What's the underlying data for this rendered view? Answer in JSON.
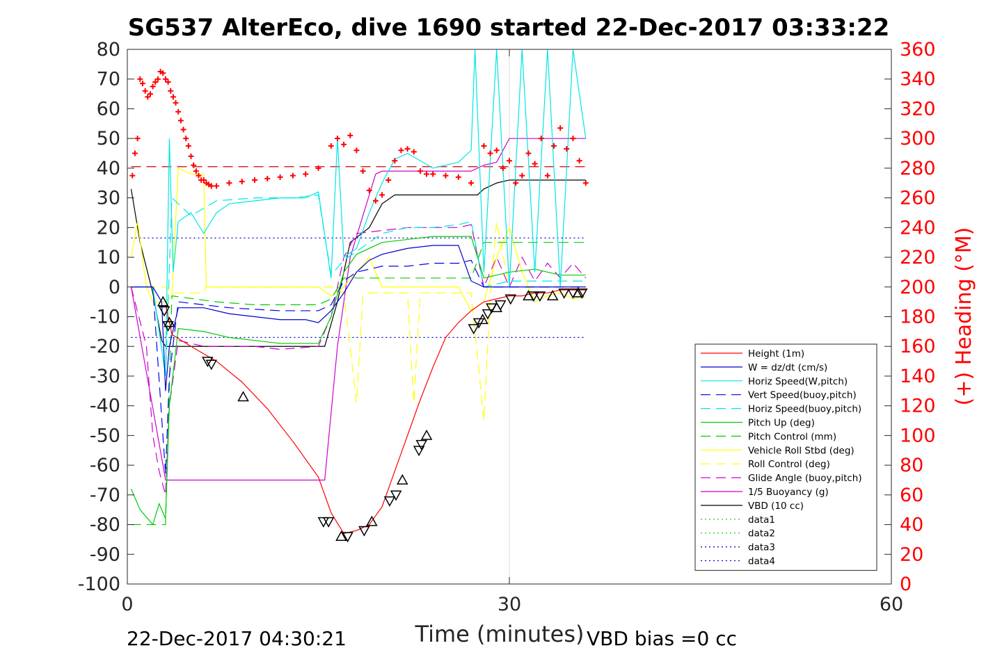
{
  "chart_data": {
    "type": "line",
    "title": "SG537 AlterEco, dive 1690 started 22-Dec-2017 03:33:22",
    "xlabel": "Time (minutes)",
    "ylabel": "",
    "y2label": "(+) Heading (°M)",
    "xlim": [
      0,
      60
    ],
    "ylim": [
      -100,
      80
    ],
    "y2lim": [
      0,
      360
    ],
    "xticks": [
      "0",
      "30",
      "60"
    ],
    "xtick_values": [
      0,
      30,
      60
    ],
    "yticks": [
      "80",
      "70",
      "60",
      "50",
      "40",
      "30",
      "20",
      "10",
      "0",
      "-10",
      "-20",
      "-30",
      "-40",
      "-50",
      "-60",
      "-70",
      "-80",
      "-90",
      "-100"
    ],
    "ytick_values": [
      80,
      70,
      60,
      50,
      40,
      30,
      20,
      10,
      0,
      -10,
      -20,
      -30,
      -40,
      -50,
      -60,
      -70,
      -80,
      -90,
      -100
    ],
    "y2ticks": [
      "360",
      "340",
      "320",
      "300",
      "280",
      "260",
      "240",
      "220",
      "200",
      "180",
      "160",
      "140",
      "120",
      "100",
      "80",
      "60",
      "40",
      "20",
      "0"
    ],
    "y2tick_values": [
      360,
      340,
      320,
      300,
      280,
      260,
      240,
      220,
      200,
      180,
      160,
      140,
      120,
      100,
      80,
      60,
      40,
      20,
      0
    ],
    "grid": "x at 30",
    "legend_position": "bottom-right",
    "series": [
      {
        "name": "Height (1m)",
        "color": "#ff0000",
        "style": "solid",
        "x": [
          3.0,
          3.5,
          5,
          7,
          9,
          11,
          13,
          15,
          16,
          17,
          18,
          19,
          20,
          21,
          22,
          23,
          24,
          25,
          26,
          27,
          28,
          29,
          30,
          31,
          32,
          33,
          34,
          35,
          36
        ],
        "y": [
          -6,
          -16,
          -20,
          -25,
          -32,
          -41,
          -52,
          -64,
          -76,
          -83,
          -82,
          -80,
          -74,
          -62,
          -50,
          -38,
          -27,
          -17,
          -12,
          -8,
          -5,
          -4,
          -3,
          -3,
          -2,
          -2,
          -1,
          -1,
          -1
        ]
      },
      {
        "name": "W = dz/dt (cm/s)",
        "color": "#0000cc",
        "style": "solid",
        "x": [
          0.3,
          1,
          2,
          2.7,
          3.0,
          3.3,
          4,
          6,
          8,
          10,
          12,
          14,
          15,
          16,
          17,
          18,
          19,
          20,
          21,
          22,
          24,
          26,
          27,
          28,
          29,
          30,
          31,
          33,
          36
        ],
        "y": [
          0,
          0,
          0,
          -5,
          -35,
          -20,
          -7,
          -7,
          -9,
          -10,
          -11,
          -11,
          -12,
          -8,
          -2,
          5,
          9,
          11,
          12,
          13,
          14,
          14,
          2,
          0,
          0,
          0,
          0,
          0,
          0
        ]
      },
      {
        "name": "Horiz Speed(W,pitch)",
        "color": "#00e5e5",
        "style": "solid",
        "x": [
          0.3,
          1,
          2,
          3.0,
          3.3,
          3.6,
          4,
          5,
          6,
          7,
          8,
          10,
          12,
          14,
          15,
          16,
          16.5,
          17,
          18,
          19,
          20,
          21,
          22,
          24,
          26,
          27,
          27.3,
          28,
          29,
          30,
          31,
          32,
          33,
          34,
          35,
          36
        ],
        "y": [
          0,
          0,
          0,
          -30,
          50,
          5,
          22,
          25,
          18,
          25,
          28,
          29,
          30,
          30,
          32,
          3,
          50,
          10,
          13,
          25,
          35,
          43,
          45,
          40,
          42,
          46,
          80,
          5,
          80,
          0,
          80,
          5,
          80,
          0,
          80,
          50
        ]
      },
      {
        "name": "Vert Speed(buoy,pitch)",
        "color": "#0000ee",
        "style": "dashed",
        "x": [
          0.3,
          2,
          3.0,
          3.3,
          4,
          8,
          12,
          15,
          16,
          17,
          18,
          20,
          22,
          24,
          26,
          27,
          28,
          32,
          36
        ],
        "y": [
          0,
          0,
          -63,
          -30,
          -5,
          -7,
          -8,
          -8,
          -6,
          2,
          5,
          7,
          7,
          8,
          8,
          9,
          0,
          0,
          0
        ]
      },
      {
        "name": "Horiz Speed(buoy,pitch)",
        "color": "#00e5e5",
        "style": "dashed",
        "x": [
          0.3,
          2,
          3.0,
          3.5,
          5,
          7,
          10,
          13,
          15,
          16,
          17,
          18,
          20,
          22,
          24,
          26,
          27,
          28,
          30,
          32,
          34,
          36
        ],
        "y": [
          0,
          0,
          -30,
          30,
          24,
          29,
          30,
          30,
          31,
          4,
          9,
          12,
          18,
          20,
          20,
          21,
          22,
          0,
          2,
          2,
          2,
          2
        ]
      },
      {
        "name": "Pitch Up (deg)",
        "color": "#00cc00",
        "style": "solid",
        "x": [
          0.3,
          1,
          2,
          2.5,
          3.0,
          3.3,
          4,
          6,
          8,
          10,
          12,
          14,
          15,
          16,
          17,
          18,
          20,
          22,
          24,
          26,
          27,
          28,
          30,
          32,
          34,
          36
        ],
        "y": [
          -68,
          -75,
          -80,
          -73,
          -78,
          -40,
          -14,
          -15,
          -17,
          -18,
          -19,
          -19,
          -19,
          -10,
          5,
          11,
          15,
          16,
          17,
          17,
          17,
          3,
          5,
          6,
          4,
          4
        ]
      },
      {
        "name": "Pitch Control (mm)",
        "color": "#00cc00",
        "style": "dashed",
        "x": [
          0.3,
          2.5,
          3.0,
          3.5,
          7,
          10,
          14,
          15,
          16,
          17,
          18,
          20,
          24,
          27,
          28,
          36
        ],
        "y": [
          -80,
          -80,
          -80,
          -3,
          -5,
          -6,
          -6,
          -6,
          -4,
          3,
          3,
          3,
          3,
          3,
          15,
          15
        ]
      },
      {
        "name": "Vehicle Roll Stbd (deg)",
        "color": "#ffff00",
        "style": "solid",
        "x": [
          0.3,
          0.8,
          1.5,
          2,
          3.0,
          3.5,
          4,
          5,
          6,
          6.2,
          8,
          12,
          15,
          16,
          17,
          18,
          19,
          20,
          22,
          24,
          26,
          27,
          28,
          29,
          30,
          31,
          32,
          33,
          34,
          35,
          36
        ],
        "y": [
          10,
          22,
          0,
          -5,
          -5,
          -3,
          40,
          38,
          38,
          0,
          0,
          0,
          0,
          -3,
          0,
          5,
          10,
          0,
          0,
          0,
          0,
          -8,
          -5,
          10,
          20,
          5,
          -5,
          -3,
          -2,
          -4,
          -3
        ]
      },
      {
        "name": "Roll Control (deg)",
        "color": "#ffff00",
        "style": "dashed",
        "x": [
          0.3,
          2.5,
          3.0,
          3.5,
          6,
          6.2,
          16,
          17,
          18,
          18.5,
          19,
          20,
          22,
          22.5,
          23,
          27,
          28,
          28.5,
          29,
          30,
          32,
          34,
          36
        ],
        "y": [
          0,
          0,
          0,
          -2,
          -2,
          0,
          0,
          -2,
          -39,
          -3,
          -2,
          -2,
          -2,
          -39,
          -2,
          -2,
          -45,
          -3,
          22,
          0,
          0,
          0,
          0
        ]
      },
      {
        "name": "Glide Angle (buoy,pitch)",
        "color": "#cc00cc",
        "style": "dashed",
        "x": [
          0.3,
          1.5,
          2,
          2.5,
          3.0,
          3.3,
          4,
          6,
          8,
          10,
          12,
          15,
          16,
          17,
          18,
          20,
          22,
          24,
          26,
          27,
          28,
          29,
          30,
          31,
          32,
          33,
          34,
          35,
          36
        ],
        "y": [
          0,
          -20,
          -50,
          -62,
          -70,
          -40,
          -18,
          -20,
          -20,
          -20,
          -21,
          -20,
          -10,
          10,
          18,
          19,
          20,
          20,
          20,
          21,
          0,
          10,
          0,
          10,
          2,
          8,
          3,
          8,
          3
        ]
      },
      {
        "name": "1/5 Buoyancy (g)",
        "color": "#cc00cc",
        "style": "solid",
        "x": [
          0.3,
          2.8,
          3.0,
          15.5,
          16.5,
          17.5,
          19.5,
          20,
          21,
          27,
          28,
          29,
          30,
          36
        ],
        "y": [
          0,
          -60,
          -65,
          -65,
          -20,
          10,
          38,
          39,
          39,
          39,
          41,
          42,
          50,
          50
        ]
      },
      {
        "name": "VBD (10 cc)",
        "color": "#000000",
        "style": "solid",
        "x": [
          0.3,
          1,
          2,
          2.7,
          3.0,
          15.5,
          16.5,
          17.5,
          19,
          20,
          21,
          25,
          27.5,
          28,
          29,
          30,
          36
        ],
        "y": [
          33,
          15,
          -2,
          -18,
          -20,
          -20,
          -5,
          15,
          20,
          28,
          31,
          31,
          31,
          33,
          35,
          36,
          36
        ]
      },
      {
        "name": "data1",
        "color": "#00cc00",
        "style": "dotted",
        "x": [],
        "y": []
      },
      {
        "name": "data2",
        "color": "#00cc00",
        "style": "dotted",
        "x": [],
        "y": []
      },
      {
        "name": "data3",
        "color": "#0000cc",
        "style": "dotted",
        "x": [
          0.3,
          36
        ],
        "y": [
          16.5,
          16.5
        ]
      },
      {
        "name": "data4",
        "color": "#0000cc",
        "style": "dotted",
        "x": [
          0.3,
          36
        ],
        "y": [
          -17,
          -17
        ]
      }
    ],
    "reference_lines": [
      {
        "color": "#cc0000",
        "style": "dashed",
        "axis": "y2",
        "x": [
          0.3,
          36
        ],
        "y": [
          281,
          281
        ]
      }
    ],
    "heading_points": {
      "axis": "y2",
      "color": "#ff0000",
      "marker": "+",
      "x": [
        0.4,
        0.6,
        0.8,
        1.0,
        1.2,
        1.4,
        1.6,
        1.8,
        2.0,
        2.2,
        2.4,
        2.6,
        2.8,
        3.0,
        3.2,
        3.4,
        3.6,
        3.8,
        4.0,
        4.2,
        4.4,
        4.6,
        4.8,
        5.0,
        5.2,
        5.4,
        5.6,
        5.8,
        6.0,
        6.2,
        6.4,
        6.6,
        7,
        8,
        9,
        10,
        11,
        12,
        13,
        14,
        15,
        16,
        16.5,
        17,
        17.5,
        18,
        18.5,
        19,
        19.5,
        20,
        20.5,
        21,
        21.5,
        22,
        22.5,
        23,
        23.5,
        24,
        25,
        26,
        27,
        28,
        28.5,
        29,
        29.5,
        30,
        30.5,
        31,
        31.5,
        32,
        32.5,
        33,
        33.5,
        34,
        34.5,
        35,
        35.5,
        36
      ],
      "y": [
        275,
        290,
        300,
        340,
        337,
        332,
        328,
        330,
        335,
        338,
        340,
        345,
        344,
        340,
        338,
        332,
        328,
        324,
        318,
        312,
        306,
        300,
        295,
        288,
        282,
        278,
        275,
        272,
        272,
        270,
        269,
        268,
        268,
        270,
        271,
        272,
        273,
        274,
        275,
        276,
        280,
        295,
        300,
        296,
        302,
        292,
        278,
        265,
        258,
        262,
        272,
        285,
        292,
        293,
        291,
        278,
        276,
        276,
        275,
        274,
        270,
        295,
        290,
        292,
        280,
        285,
        270,
        275,
        290,
        283,
        300,
        275,
        295,
        307,
        293,
        300,
        285,
        270
      ]
    },
    "triangle_markers": {
      "color": "#000000",
      "x": [
        2.8,
        2.9,
        3.2,
        3.3,
        6.3,
        6.6,
        9.1,
        15.4,
        15.8,
        16.8,
        17.3,
        18.6,
        19.2,
        20.6,
        21.1,
        21.6,
        22.9,
        23.1,
        23.5,
        27.2,
        27.6,
        27.9,
        28.3,
        28.6,
        29.0,
        29.3,
        30.1,
        31.5,
        31.9,
        32.4,
        33.4,
        34.3,
        35.0,
        35.4,
        35.7
      ],
      "y": [
        -5,
        -8,
        -13,
        -12,
        -25,
        -26,
        -37,
        -79,
        -79,
        -84,
        -84,
        -82,
        -79,
        -72,
        -70,
        -65,
        -55,
        -53,
        -50,
        -14,
        -12,
        -11,
        -9,
        -7,
        -7,
        -6,
        -4,
        -3,
        -3,
        -3,
        -3,
        -2,
        -2,
        -2,
        -2
      ]
    }
  },
  "footer": {
    "left_text": "22-Dec-2017 04:30:21",
    "right_text": "VBD bias =0 cc"
  }
}
